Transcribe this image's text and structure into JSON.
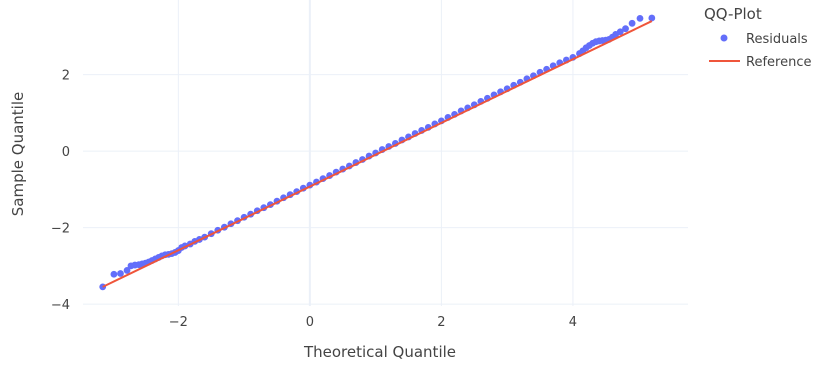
{
  "chart_data": {
    "type": "scatter",
    "title": "",
    "xlabel": "Theoretical Quantile",
    "ylabel": "Sample Quantile",
    "xlim": [
      -3.45,
      5.75
    ],
    "ylim": [
      -4.05,
      3.95
    ],
    "xticks": [
      -2,
      0,
      2,
      4
    ],
    "yticks": [
      -4,
      -2,
      0,
      2
    ],
    "xtick_labels": [
      "−2",
      "0",
      "2",
      "4"
    ],
    "ytick_labels": [
      "−4",
      "−2",
      "0",
      "2"
    ],
    "grid": true,
    "legend": {
      "title": "QQ-Plot",
      "placement": "top-right",
      "entries": [
        "Residuals",
        "Reference"
      ]
    },
    "colors": {
      "residuals": "#636efa",
      "reference": "#EF553B",
      "grid": "#EBF0F8",
      "text": "#444444"
    },
    "reference_line": {
      "name": "Reference",
      "x": [
        -3.15,
        5.2
      ],
      "y": [
        -3.55,
        3.4
      ]
    },
    "series": [
      {
        "name": "Residuals",
        "x": [
          -3.15,
          -2.98,
          -2.88,
          -2.78,
          -2.72,
          -2.66,
          -2.6,
          -2.55,
          -2.5,
          -2.45,
          -2.4,
          -2.35,
          -2.3,
          -2.25,
          -2.2,
          -2.15,
          -2.1,
          -2.05,
          -2.0,
          -1.95,
          -1.9,
          -1.82,
          -1.75,
          -1.68,
          -1.6,
          -1.5,
          -1.4,
          -1.3,
          -1.2,
          -1.1,
          -1.0,
          -0.9,
          -0.8,
          -0.7,
          -0.6,
          -0.5,
          -0.4,
          -0.3,
          -0.2,
          -0.1,
          0.0,
          0.1,
          0.2,
          0.3,
          0.4,
          0.5,
          0.6,
          0.7,
          0.8,
          0.9,
          1.0,
          1.1,
          1.2,
          1.3,
          1.4,
          1.5,
          1.6,
          1.7,
          1.8,
          1.9,
          2.0,
          2.1,
          2.2,
          2.3,
          2.4,
          2.5,
          2.6,
          2.7,
          2.8,
          2.9,
          3.0,
          3.1,
          3.2,
          3.3,
          3.4,
          3.5,
          3.6,
          3.7,
          3.8,
          3.9,
          4.0,
          4.1,
          4.15,
          4.2,
          4.25,
          4.3,
          4.35,
          4.4,
          4.45,
          4.5,
          4.55,
          4.6,
          4.65,
          4.72,
          4.8,
          4.9,
          5.02,
          5.2
        ],
        "y": [
          -3.55,
          -3.22,
          -3.2,
          -3.12,
          -3.0,
          -2.98,
          -2.97,
          -2.95,
          -2.93,
          -2.9,
          -2.86,
          -2.82,
          -2.78,
          -2.74,
          -2.71,
          -2.7,
          -2.68,
          -2.65,
          -2.6,
          -2.52,
          -2.48,
          -2.43,
          -2.36,
          -2.31,
          -2.25,
          -2.16,
          -2.07,
          -1.99,
          -1.9,
          -1.82,
          -1.73,
          -1.65,
          -1.56,
          -1.48,
          -1.4,
          -1.31,
          -1.22,
          -1.14,
          -1.06,
          -0.97,
          -0.89,
          -0.81,
          -0.72,
          -0.64,
          -0.55,
          -0.47,
          -0.39,
          -0.3,
          -0.22,
          -0.13,
          -0.05,
          0.04,
          0.12,
          0.2,
          0.29,
          0.37,
          0.46,
          0.54,
          0.62,
          0.71,
          0.79,
          0.88,
          0.96,
          1.05,
          1.13,
          1.21,
          1.3,
          1.38,
          1.47,
          1.55,
          1.63,
          1.72,
          1.8,
          1.89,
          1.97,
          2.06,
          2.14,
          2.23,
          2.31,
          2.38,
          2.45,
          2.55,
          2.62,
          2.7,
          2.76,
          2.82,
          2.86,
          2.88,
          2.89,
          2.9,
          2.92,
          2.98,
          3.05,
          3.12,
          3.2,
          3.34,
          3.47,
          3.48
        ]
      }
    ]
  }
}
